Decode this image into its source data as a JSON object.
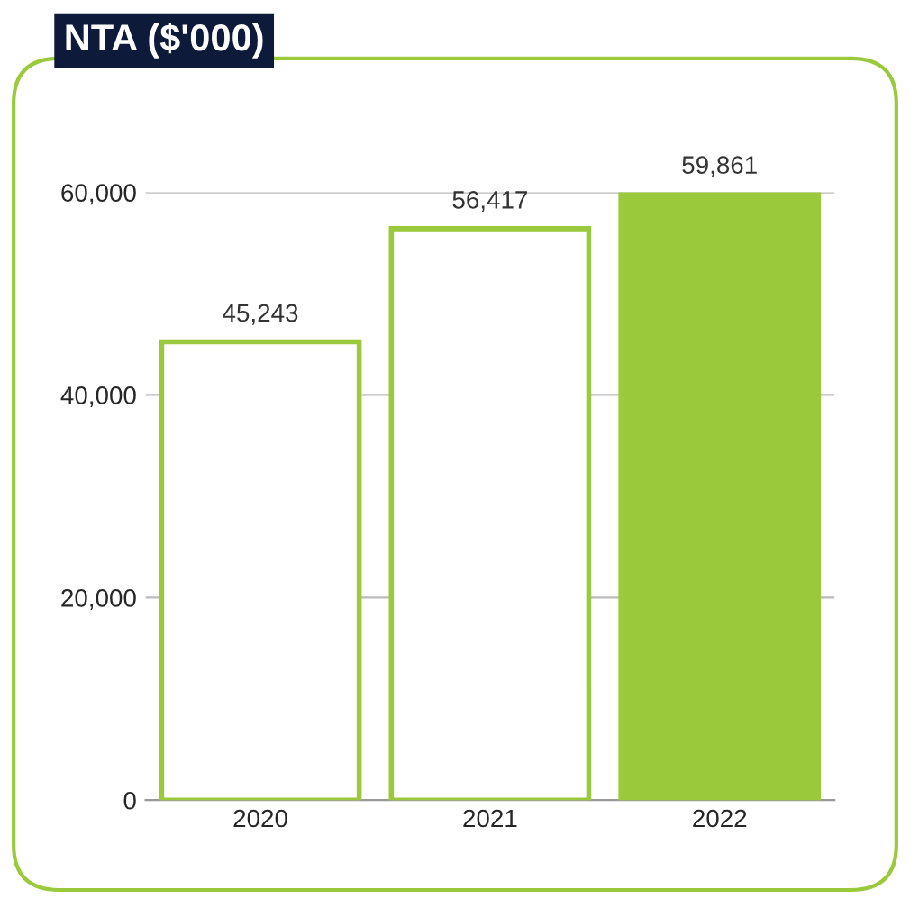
{
  "chart_data": {
    "type": "bar",
    "title": "NTA ($'000)",
    "categories": [
      "2020",
      "2021",
      "2022"
    ],
    "values": [
      45243,
      56417,
      59861
    ],
    "value_labels": [
      "45,243",
      "56,417",
      "59,861"
    ],
    "colors": [
      "#ffffff",
      "#ffffff",
      "#9ac93c"
    ],
    "ylim": [
      0,
      60000
    ],
    "yticks": [
      0,
      {
        "value": 20000,
        "label": "20,000"
      },
      {
        "value": 40000,
        "label": "40,000"
      },
      {
        "value": 60000,
        "label": "60,000"
      }
    ],
    "grid": "y",
    "legend": false
  }
}
